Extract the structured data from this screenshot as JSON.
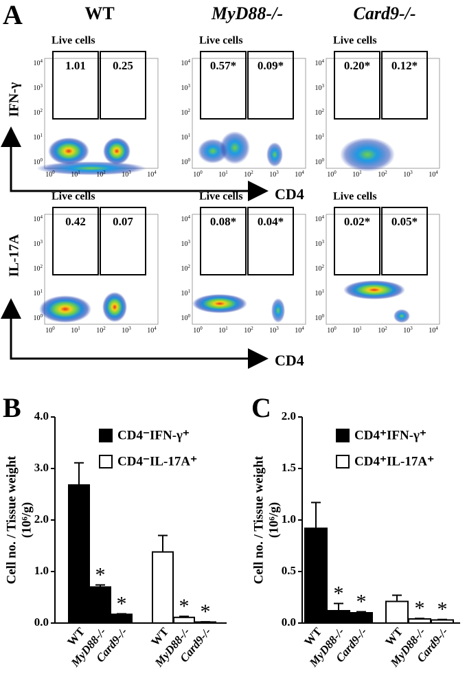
{
  "panels": [
    "A",
    "B",
    "C"
  ],
  "flow": {
    "columns": [
      "WT",
      "MyD88-/-",
      "Card9-/-"
    ],
    "gate_title": "Live cells",
    "tick_base": "10",
    "tick_exponents": [
      "0",
      "1",
      "2",
      "3",
      "4"
    ],
    "rows": [
      {
        "y_label": "IFN-γ",
        "x_label": "CD4",
        "gates": [
          [
            "1.01",
            "0.25"
          ],
          [
            "0.57*",
            "0.09*"
          ],
          [
            "0.20*",
            "0.12*"
          ]
        ]
      },
      {
        "y_label": "IL-17A",
        "x_label": "CD4",
        "gates": [
          [
            "0.42",
            "0.07"
          ],
          [
            "0.08*",
            "0.04*"
          ],
          [
            "0.02*",
            "0.05*"
          ]
        ]
      }
    ]
  },
  "chart_data": [
    {
      "type": "bar",
      "y_label": [
        "Cell no. / Tissue weight",
        "(10⁶/g)"
      ],
      "categories": [
        "WT",
        "MyD88-/-",
        "Card9-/-"
      ],
      "ylim": [
        0,
        4
      ],
      "yticks": [
        {
          "value": 0,
          "label": "0.0"
        },
        {
          "value": 1,
          "label": "1.0"
        },
        {
          "value": 2,
          "label": "2.0"
        },
        {
          "value": 3,
          "label": "3.0"
        },
        {
          "value": 4,
          "label": "4.0"
        }
      ],
      "series": [
        {
          "name": "CD4⁻IFN-γ⁺",
          "color": "#000000",
          "values": [
            2.68,
            0.7,
            0.17
          ],
          "errors": [
            0.43,
            0.04,
            0.01
          ],
          "annotations": [
            null,
            "*",
            "*"
          ]
        },
        {
          "name": "CD4⁻IL-17A⁺",
          "color": "#ffffff",
          "values": [
            1.38,
            0.11,
            0.02
          ],
          "errors": [
            0.32,
            0.02,
            0.005
          ],
          "annotations": [
            null,
            "*",
            "*"
          ]
        }
      ]
    },
    {
      "type": "bar",
      "y_label": [
        "Cell no. / Tissue weight",
        "(10⁶/g)"
      ],
      "categories": [
        "WT",
        "MyD88-/-",
        "Card9-/-"
      ],
      "ylim": [
        0,
        2
      ],
      "yticks": [
        {
          "value": 0,
          "label": "0.0"
        },
        {
          "value": 0.5,
          "label": "0.5"
        },
        {
          "value": 1,
          "label": "1.0"
        },
        {
          "value": 1.5,
          "label": "1.5"
        },
        {
          "value": 2,
          "label": "2.0"
        }
      ],
      "series": [
        {
          "name": "CD4⁺IFN-γ⁺",
          "color": "#000000",
          "values": [
            0.92,
            0.12,
            0.1
          ],
          "errors": [
            0.25,
            0.07,
            0.01
          ],
          "annotations": [
            null,
            "*",
            "*"
          ]
        },
        {
          "name": "CD4⁺IL-17A⁺",
          "color": "#ffffff",
          "values": [
            0.21,
            0.04,
            0.03
          ],
          "errors": [
            0.06,
            0.005,
            0.005
          ],
          "annotations": [
            null,
            "*",
            "*"
          ]
        }
      ]
    }
  ]
}
